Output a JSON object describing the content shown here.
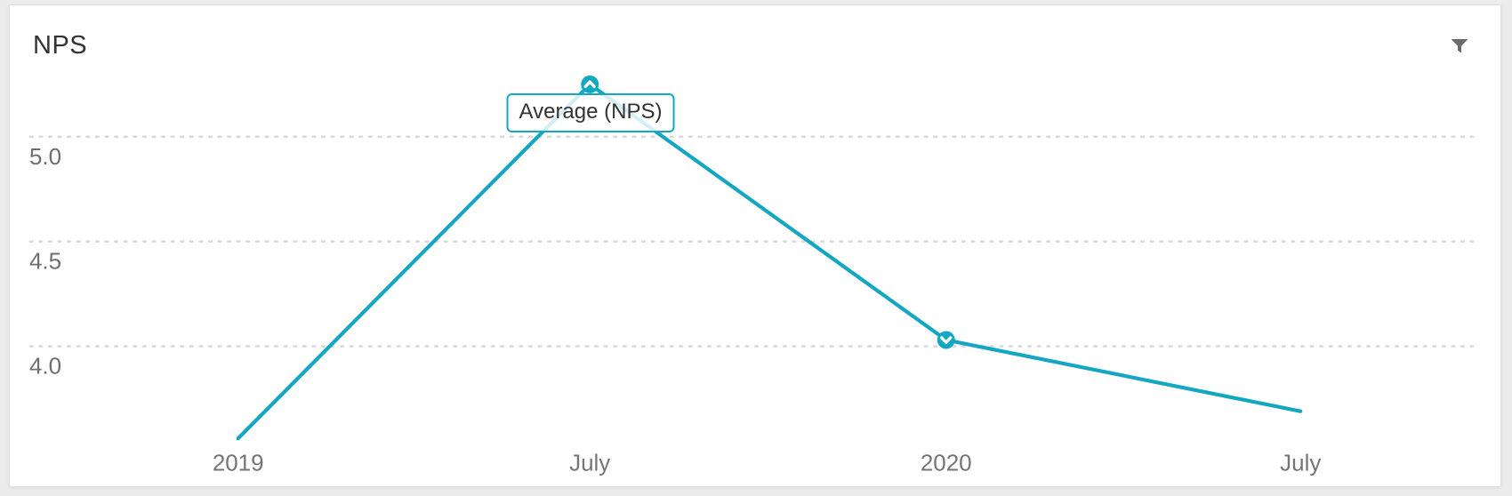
{
  "page": {
    "background": "#ececec"
  },
  "card": {
    "title": "NPS"
  },
  "header": {
    "filter_icon": "funnel"
  },
  "colors": {
    "accent": "#14a7c2",
    "grid": "#d9d9d9",
    "axis_label": "#6e6e6e",
    "x_label": "#757575",
    "title_text": "#333333",
    "icon": "#6b6b6b",
    "tooltip_text": "#333333"
  },
  "chart_data": {
    "type": "line",
    "title": "NPS",
    "categories": [
      "2019",
      "July",
      "2020",
      "July"
    ],
    "series": [
      {
        "name": "Average (NPS)",
        "values": [
          3.56,
          5.25,
          4.03,
          3.69
        ]
      }
    ],
    "yticks": [
      5.0,
      4.5,
      4.0
    ],
    "ylim": [
      3.4,
      5.45
    ],
    "xlabel": "",
    "ylabel": "",
    "grid": "horizontal-dotted",
    "legend_position": "none",
    "markers": [
      {
        "index": 1,
        "direction": "up"
      },
      {
        "index": 2,
        "direction": "down"
      }
    ],
    "tooltip": {
      "label": "Average (NPS)",
      "anchor_index": 1
    }
  }
}
